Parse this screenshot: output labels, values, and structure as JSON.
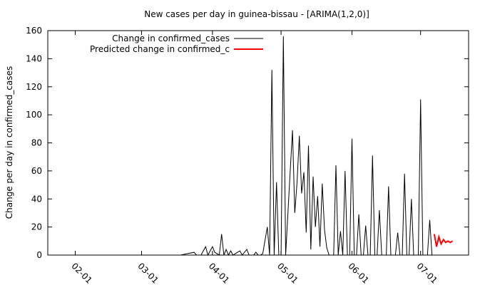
{
  "chart_data": {
    "type": "line",
    "title": "New cases per day in guinea-bissau -  [ARIMA(1,2,0)]",
    "ylabel": "Change per day in confirmed_cases",
    "xlabel": "",
    "xlim": [
      "2020-01-20",
      "2020-07-22"
    ],
    "ylim": [
      0,
      160
    ],
    "yticks": [
      0,
      20,
      40,
      60,
      80,
      100,
      120,
      140,
      160
    ],
    "xticks": [
      {
        "date": "2020-02-01",
        "label": "02-01"
      },
      {
        "date": "2020-03-01",
        "label": "03-01"
      },
      {
        "date": "2020-04-01",
        "label": "04-01"
      },
      {
        "date": "2020-05-01",
        "label": "05-01"
      },
      {
        "date": "2020-06-01",
        "label": "06-01"
      },
      {
        "date": "2020-07-01",
        "label": "07-01"
      }
    ],
    "legend_position": "top-left",
    "grid": false,
    "series": [
      {
        "name": "Change in confirmed_cases",
        "color": "#000000",
        "points": [
          [
            "2020-02-01",
            0
          ],
          [
            "2020-03-01",
            0
          ],
          [
            "2020-03-18",
            0
          ],
          [
            "2020-03-24",
            2
          ],
          [
            "2020-03-25",
            0
          ],
          [
            "2020-03-27",
            0
          ],
          [
            "2020-03-29",
            6
          ],
          [
            "2020-03-30",
            0
          ],
          [
            "2020-04-01",
            6
          ],
          [
            "2020-04-02",
            2
          ],
          [
            "2020-04-04",
            0
          ],
          [
            "2020-04-05",
            15
          ],
          [
            "2020-04-06",
            0
          ],
          [
            "2020-04-07",
            4
          ],
          [
            "2020-04-08",
            0
          ],
          [
            "2020-04-09",
            3
          ],
          [
            "2020-04-10",
            0
          ],
          [
            "2020-04-13",
            3
          ],
          [
            "2020-04-14",
            0
          ],
          [
            "2020-04-16",
            4
          ],
          [
            "2020-04-17",
            0
          ],
          [
            "2020-04-19",
            0
          ],
          [
            "2020-04-20",
            2
          ],
          [
            "2020-04-21",
            0
          ],
          [
            "2020-04-22",
            0
          ],
          [
            "2020-04-23",
            1
          ],
          [
            "2020-04-25",
            20
          ],
          [
            "2020-04-26",
            0
          ],
          [
            "2020-04-27",
            132
          ],
          [
            "2020-04-28",
            0
          ],
          [
            "2020-04-29",
            52
          ],
          [
            "2020-04-30",
            0
          ],
          [
            "2020-05-01",
            0
          ],
          [
            "2020-05-02",
            156
          ],
          [
            "2020-05-03",
            0
          ],
          [
            "2020-05-05",
            60
          ],
          [
            "2020-05-06",
            89
          ],
          [
            "2020-05-07",
            30
          ],
          [
            "2020-05-08",
            52
          ],
          [
            "2020-05-09",
            85
          ],
          [
            "2020-05-10",
            44
          ],
          [
            "2020-05-11",
            59
          ],
          [
            "2020-05-12",
            16
          ],
          [
            "2020-05-13",
            78
          ],
          [
            "2020-05-14",
            4
          ],
          [
            "2020-05-15",
            56
          ],
          [
            "2020-05-16",
            20
          ],
          [
            "2020-05-17",
            42
          ],
          [
            "2020-05-18",
            6
          ],
          [
            "2020-05-19",
            51
          ],
          [
            "2020-05-20",
            18
          ],
          [
            "2020-05-21",
            5
          ],
          [
            "2020-05-22",
            0
          ],
          [
            "2020-05-24",
            0
          ],
          [
            "2020-05-25",
            64
          ],
          [
            "2020-05-26",
            0
          ],
          [
            "2020-05-27",
            17
          ],
          [
            "2020-05-28",
            0
          ],
          [
            "2020-05-29",
            60
          ],
          [
            "2020-05-30",
            0
          ],
          [
            "2020-05-31",
            0
          ],
          [
            "2020-06-01",
            83
          ],
          [
            "2020-06-02",
            0
          ],
          [
            "2020-06-03",
            0
          ],
          [
            "2020-06-04",
            29
          ],
          [
            "2020-06-05",
            0
          ],
          [
            "2020-06-06",
            0
          ],
          [
            "2020-06-07",
            21
          ],
          [
            "2020-06-08",
            0
          ],
          [
            "2020-06-09",
            0
          ],
          [
            "2020-06-10",
            71
          ],
          [
            "2020-06-11",
            0
          ],
          [
            "2020-06-12",
            0
          ],
          [
            "2020-06-13",
            32
          ],
          [
            "2020-06-14",
            0
          ],
          [
            "2020-06-15",
            0
          ],
          [
            "2020-06-16",
            0
          ],
          [
            "2020-06-17",
            49
          ],
          [
            "2020-06-18",
            0
          ],
          [
            "2020-06-19",
            0
          ],
          [
            "2020-06-20",
            0
          ],
          [
            "2020-06-21",
            16
          ],
          [
            "2020-06-22",
            0
          ],
          [
            "2020-06-23",
            0
          ],
          [
            "2020-06-24",
            58
          ],
          [
            "2020-06-25",
            0
          ],
          [
            "2020-06-26",
            0
          ],
          [
            "2020-06-27",
            40
          ],
          [
            "2020-06-28",
            0
          ],
          [
            "2020-06-29",
            0
          ],
          [
            "2020-06-30",
            0
          ],
          [
            "2020-07-01",
            111
          ],
          [
            "2020-07-02",
            0
          ],
          [
            "2020-07-03",
            0
          ],
          [
            "2020-07-04",
            0
          ],
          [
            "2020-07-05",
            25
          ],
          [
            "2020-07-06",
            0
          ]
        ]
      },
      {
        "name": "Predicted change in confirmed_c",
        "color": "#ff0000",
        "points": [
          [
            "2020-07-07",
            15
          ],
          [
            "2020-07-08",
            6
          ],
          [
            "2020-07-09",
            13
          ],
          [
            "2020-07-10",
            8
          ],
          [
            "2020-07-11",
            11
          ],
          [
            "2020-07-12",
            9
          ],
          [
            "2020-07-13",
            10
          ],
          [
            "2020-07-14",
            9
          ],
          [
            "2020-07-15",
            10
          ]
        ]
      }
    ]
  }
}
